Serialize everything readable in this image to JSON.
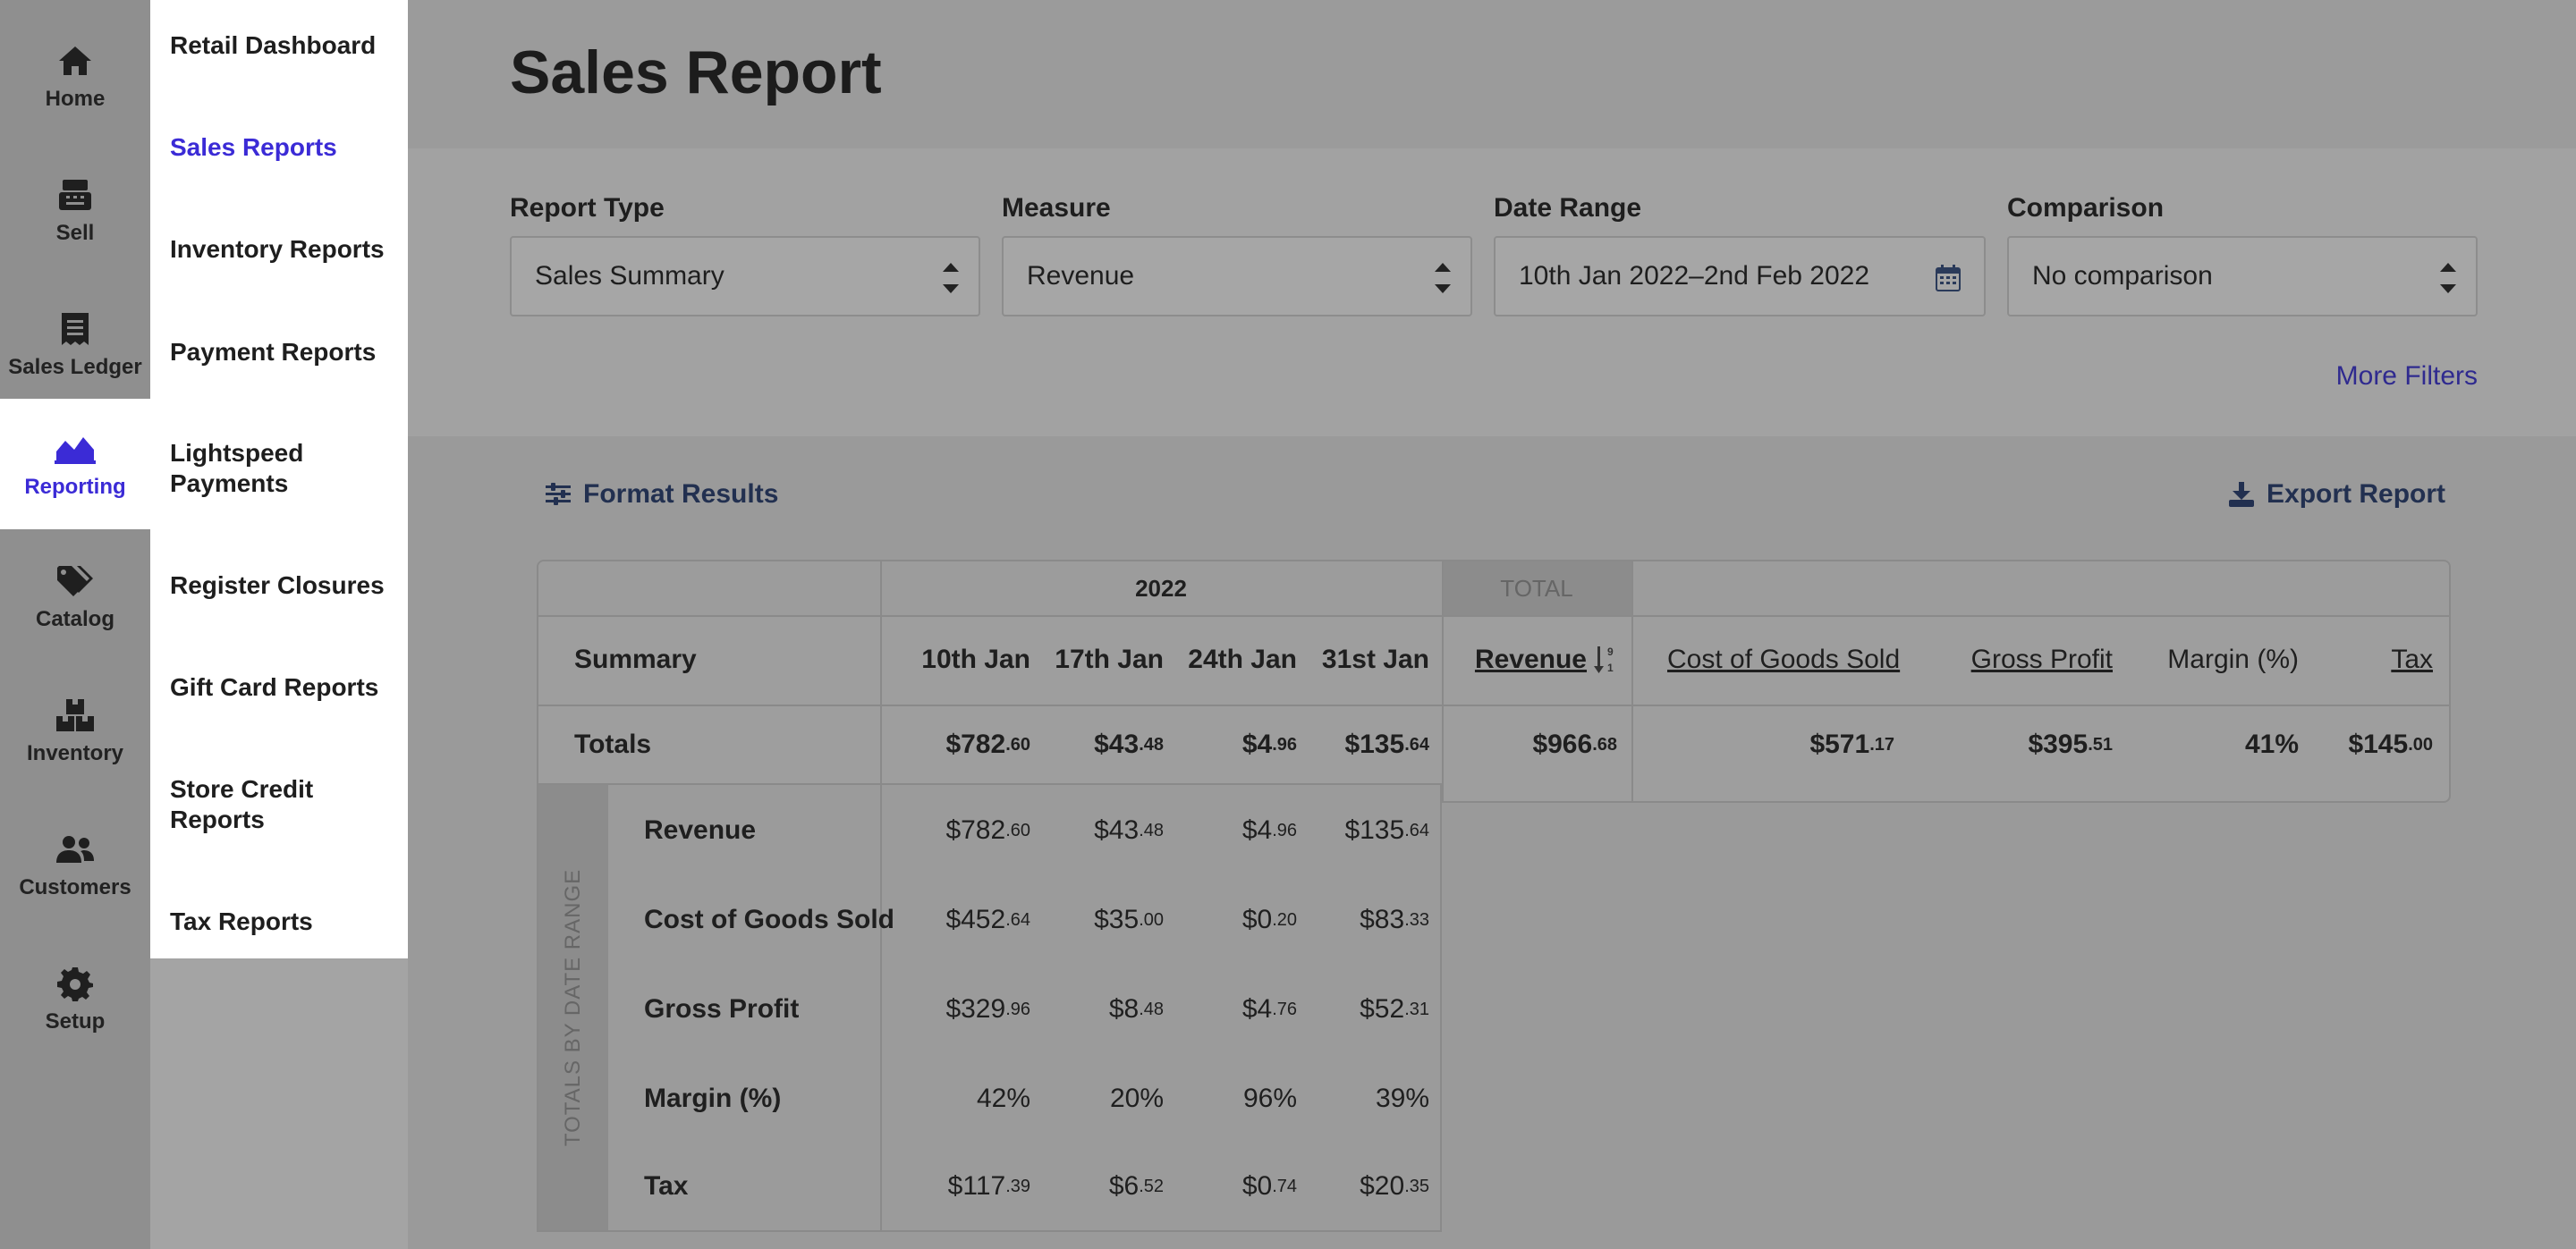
{
  "rail": [
    {
      "label": "Home",
      "icon": "home-icon"
    },
    {
      "label": "Sell",
      "icon": "register-icon"
    },
    {
      "label": "Sales Ledger",
      "icon": "receipt-icon"
    },
    {
      "label": "Reporting",
      "icon": "chart-area-icon",
      "active": true
    },
    {
      "label": "Catalog",
      "icon": "tags-icon"
    },
    {
      "label": "Inventory",
      "icon": "boxes-icon"
    },
    {
      "label": "Customers",
      "icon": "users-icon"
    },
    {
      "label": "Setup",
      "icon": "gear-icon"
    }
  ],
  "submenu": [
    "Retail Dashboard",
    "Sales Reports",
    "Inventory Reports",
    "Payment Reports",
    "Lightspeed Payments",
    "Register Closures",
    "Gift Card Reports",
    "Store Credit Reports",
    "Tax Reports"
  ],
  "page_title": "Sales Report",
  "filters": {
    "report_type": {
      "label": "Report Type",
      "value": "Sales Summary"
    },
    "measure": {
      "label": "Measure",
      "value": "Revenue"
    },
    "date_range": {
      "label": "Date Range",
      "value": "10th Jan 2022–2nd Feb 2022"
    },
    "comparison": {
      "label": "Comparison",
      "value": "No comparison"
    },
    "more_filters": "More Filters"
  },
  "actions": {
    "format_results": "Format Results",
    "export_report": "Export Report"
  },
  "table": {
    "group_year": "2022",
    "group_total": "TOTAL",
    "summary_label": "Summary",
    "periods": [
      "10th Jan",
      "17th Jan",
      "24th Jan",
      "31st Jan"
    ],
    "total_headers": [
      "Revenue",
      "Cost of Goods Sold",
      "Gross Profit",
      "Margin (%)",
      "Tax"
    ],
    "totals_label": "Totals",
    "totals_periods": [
      [
        "$782",
        ".60"
      ],
      [
        "$43",
        ".48"
      ],
      [
        "$4",
        ".96"
      ],
      [
        "$135",
        ".64"
      ]
    ],
    "totals_values": [
      [
        "$966",
        ".68"
      ],
      [
        "$571",
        ".17"
      ],
      [
        "$395",
        ".51"
      ],
      [
        "41%",
        ""
      ],
      [
        "$145",
        ".00"
      ]
    ],
    "side_label": "TOTALS BY DATE RANGE",
    "rows": [
      {
        "label": "Revenue",
        "values": [
          [
            "$782",
            ".60"
          ],
          [
            "$43",
            ".48"
          ],
          [
            "$4",
            ".96"
          ],
          [
            "$135",
            ".64"
          ]
        ]
      },
      {
        "label": "Cost of Goods Sold",
        "values": [
          [
            "$452",
            ".64"
          ],
          [
            "$35",
            ".00"
          ],
          [
            "$0",
            ".20"
          ],
          [
            "$83",
            ".33"
          ]
        ]
      },
      {
        "label": "Gross Profit",
        "values": [
          [
            "$329",
            ".96"
          ],
          [
            "$8",
            ".48"
          ],
          [
            "$4",
            ".76"
          ],
          [
            "$52",
            ".31"
          ]
        ]
      },
      {
        "label": "Margin (%)",
        "values": [
          [
            "42%",
            ""
          ],
          [
            "20%",
            ""
          ],
          [
            "96%",
            ""
          ],
          [
            "39%",
            ""
          ]
        ]
      },
      {
        "label": "Tax",
        "values": [
          [
            "$117",
            ".39"
          ],
          [
            "$6",
            ".52"
          ],
          [
            "$0",
            ".74"
          ],
          [
            "$20",
            ".35"
          ]
        ]
      }
    ]
  },
  "colors": {
    "accent": "#3b2bd6",
    "link": "#2f2a8f"
  }
}
